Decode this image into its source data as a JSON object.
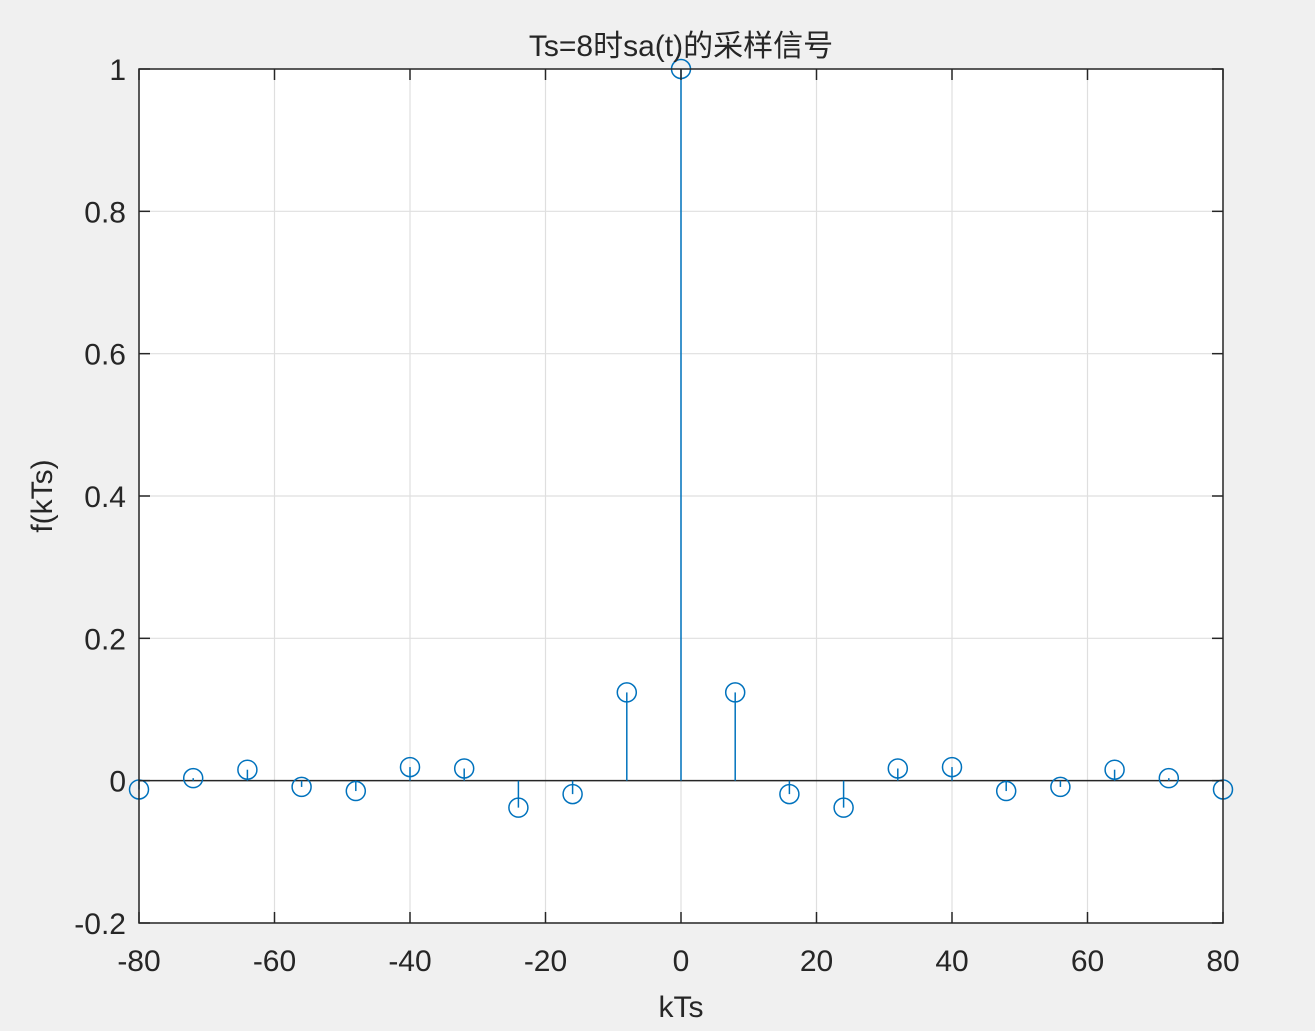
{
  "chart_data": {
    "type": "stem",
    "title": "Ts=8时sa(t)的采样信号",
    "xlabel": "kTs",
    "ylabel": "f(kTs)",
    "xlim": [
      -80,
      80
    ],
    "ylim": [
      -0.2,
      1
    ],
    "xticks": [
      "-80",
      "-60",
      "-40",
      "-20",
      "0",
      "20",
      "40",
      "60",
      "80"
    ],
    "yticks": [
      "-0.2",
      "0",
      "0.2",
      "0.4",
      "0.6",
      "0.8",
      "1"
    ],
    "grid": true,
    "marker": "circle",
    "colors": {
      "series": "#0072bd",
      "axes": "#262626",
      "grid": "#dfdfdf",
      "plot_bg": "#ffffff",
      "figure_bg": "#f0f0f0"
    },
    "x": [
      -80,
      -72,
      -64,
      -56,
      -48,
      -40,
      -32,
      -24,
      -16,
      -8,
      0,
      8,
      16,
      24,
      32,
      40,
      48,
      56,
      64,
      72,
      80
    ],
    "values": [
      -0.0124,
      0.0035,
      0.0154,
      -0.0088,
      -0.0146,
      0.0191,
      0.0171,
      -0.0379,
      -0.0189,
      0.124,
      1.0,
      0.124,
      -0.0189,
      -0.0379,
      0.0171,
      0.0191,
      -0.0146,
      -0.0088,
      0.0154,
      0.0035,
      -0.0124
    ]
  }
}
